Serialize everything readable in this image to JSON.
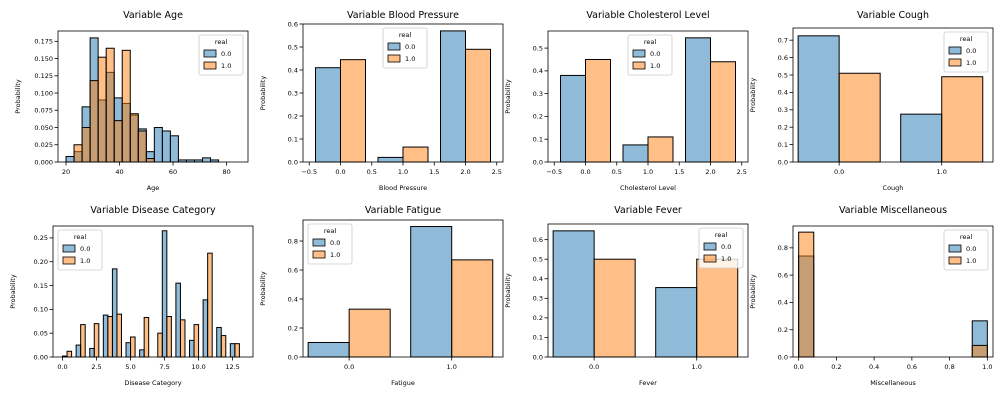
{
  "colors": {
    "series_0": "#1f77b4",
    "series_1": "#ff7f0e",
    "edge": "#000000"
  },
  "chart_data": [
    {
      "type": "histogram",
      "title": "Variable Age",
      "xlabel": "Age",
      "ylabel": "Probability",
      "xlim": [
        17,
        88
      ],
      "ylim": [
        0,
        0.19
      ],
      "xticks": [
        "20",
        "40",
        "60",
        "80"
      ],
      "xtick_values": [
        20,
        40,
        60,
        80
      ],
      "yticks": [
        "0.000",
        "0.025",
        "0.050",
        "0.075",
        "0.100",
        "0.125",
        "0.150",
        "0.175"
      ],
      "ytick_values": [
        0,
        0.025,
        0.05,
        0.075,
        0.1,
        0.125,
        0.15,
        0.175
      ],
      "legend": {
        "title": "real",
        "position": "upper-right",
        "entries": [
          "0.0",
          "1.0"
        ]
      },
      "series": [
        {
          "name": "0.0",
          "bins": [
            [
              20,
              23,
              0.008
            ],
            [
              23,
              26,
              0.015
            ],
            [
              26,
              29,
              0.08
            ],
            [
              29,
              32,
              0.18
            ],
            [
              32,
              35,
              0.09
            ],
            [
              35,
              38,
              0.13
            ],
            [
              38,
              41,
              0.093
            ],
            [
              41,
              44,
              0.085
            ],
            [
              44,
              47,
              0.068
            ],
            [
              47,
              50,
              0.048
            ],
            [
              50,
              53,
              0.015
            ],
            [
              53,
              56,
              0.05
            ],
            [
              56,
              59,
              0.045
            ],
            [
              59,
              62,
              0.038
            ],
            [
              62,
              65,
              0.003
            ],
            [
              65,
              68,
              0.003
            ],
            [
              68,
              71,
              0.003
            ],
            [
              71,
              74,
              0.006
            ],
            [
              74,
              77,
              0.003
            ]
          ]
        },
        {
          "name": "1.0",
          "bins": [
            [
              23,
              26,
              0.025
            ],
            [
              26,
              29,
              0.05
            ],
            [
              29,
              32,
              0.118
            ],
            [
              32,
              35,
              0.152
            ],
            [
              35,
              38,
              0.165
            ],
            [
              38,
              41,
              0.06
            ],
            [
              41,
              44,
              0.162
            ],
            [
              44,
              47,
              0.07
            ],
            [
              47,
              50,
              0.045
            ],
            [
              50,
              53,
              0.005
            ]
          ]
        }
      ]
    },
    {
      "type": "histogram",
      "title": "Variable Blood Pressure",
      "xlabel": "Blood Pressure",
      "ylabel": "Probability",
      "xlim": [
        -0.6,
        2.6
      ],
      "ylim": [
        0,
        0.6
      ],
      "xticks": [
        "−0.5",
        "0.0",
        "0.5",
        "1.0",
        "1.5",
        "2.0",
        "2.5"
      ],
      "xtick_values": [
        -0.5,
        0,
        0.5,
        1,
        1.5,
        2,
        2.5
      ],
      "yticks": [
        "0.0",
        "0.1",
        "0.2",
        "0.3",
        "0.4",
        "0.5",
        "0.6"
      ],
      "ytick_values": [
        0,
        0.1,
        0.2,
        0.3,
        0.4,
        0.5,
        0.6
      ],
      "legend": {
        "title": "real",
        "position": "upper-center",
        "entries": [
          "0.0",
          "1.0"
        ]
      },
      "series": [
        {
          "name": "0.0",
          "bins": [
            [
              -0.4,
              0.0,
              0.41
            ],
            [
              0.6,
              1.0,
              0.02
            ],
            [
              1.6,
              2.0,
              0.57
            ]
          ]
        },
        {
          "name": "1.0",
          "bins": [
            [
              0.0,
              0.4,
              0.445
            ],
            [
              1.0,
              1.4,
              0.065
            ],
            [
              2.0,
              2.4,
              0.49
            ]
          ]
        }
      ]
    },
    {
      "type": "histogram",
      "title": "Variable Cholesterol Level",
      "xlabel": "Cholesterol Level",
      "ylabel": "Probability",
      "xlim": [
        -0.6,
        2.6
      ],
      "ylim": [
        0,
        0.575
      ],
      "xticks": [
        "−0.5",
        "0.0",
        "0.5",
        "1.0",
        "1.5",
        "2.0",
        "2.5"
      ],
      "xtick_values": [
        -0.5,
        0,
        0.5,
        1,
        1.5,
        2,
        2.5
      ],
      "yticks": [
        "0.0",
        "0.1",
        "0.2",
        "0.3",
        "0.4",
        "0.5"
      ],
      "ytick_values": [
        0,
        0.1,
        0.2,
        0.3,
        0.4,
        0.5
      ],
      "legend": {
        "title": "real",
        "position": "upper-center",
        "entries": [
          "0.0",
          "1.0"
        ]
      },
      "series": [
        {
          "name": "0.0",
          "bins": [
            [
              -0.4,
              0.0,
              0.38
            ],
            [
              0.6,
              1.0,
              0.075
            ],
            [
              1.6,
              2.0,
              0.545
            ]
          ]
        },
        {
          "name": "1.0",
          "bins": [
            [
              0.0,
              0.4,
              0.45
            ],
            [
              1.0,
              1.4,
              0.11
            ],
            [
              2.0,
              2.4,
              0.44
            ]
          ]
        }
      ]
    },
    {
      "type": "histogram",
      "title": "Variable Cough",
      "xlabel": "Cough",
      "ylabel": "Probability",
      "xlim": [
        -0.45,
        1.5
      ],
      "ylim": [
        0,
        0.77
      ],
      "xticks": [
        "0.0",
        "1.0"
      ],
      "xtick_values": [
        0,
        1
      ],
      "yticks": [
        "0.0",
        "0.1",
        "0.2",
        "0.3",
        "0.4",
        "0.5",
        "0.6",
        "0.7"
      ],
      "ytick_values": [
        0,
        0.1,
        0.2,
        0.3,
        0.4,
        0.5,
        0.6,
        0.7
      ],
      "legend": {
        "title": "real",
        "position": "upper-right",
        "entries": [
          "0.0",
          "1.0"
        ]
      },
      "series": [
        {
          "name": "0.0",
          "bins": [
            [
              -0.4,
              0.0,
              0.725
            ],
            [
              0.6,
              1.0,
              0.275
            ]
          ]
        },
        {
          "name": "1.0",
          "bins": [
            [
              0.0,
              0.4,
              0.51
            ],
            [
              1.0,
              1.4,
              0.49
            ]
          ]
        }
      ]
    },
    {
      "type": "histogram",
      "title": "Variable Disease Category",
      "xlabel": "Disease Category",
      "ylabel": "Probability",
      "xlim": [
        -0.7,
        14.0
      ],
      "ylim": [
        0,
        0.275
      ],
      "xticks": [
        "0.0",
        "2.5",
        "5.0",
        "7.5",
        "10.0",
        "12.5"
      ],
      "xtick_values": [
        0,
        2.5,
        5,
        7.5,
        10,
        12.5
      ],
      "yticks": [
        "0.00",
        "0.05",
        "0.10",
        "0.15",
        "0.20",
        "0.25"
      ],
      "ytick_values": [
        0,
        0.05,
        0.1,
        0.15,
        0.2,
        0.25
      ],
      "legend": {
        "title": "real",
        "position": "upper-left",
        "entries": [
          "0.0",
          "1.0"
        ]
      },
      "series": [
        {
          "name": "0.0",
          "bins": [
            [
              0.0,
              0.333,
              0.002
            ],
            [
              1.0,
              1.333,
              0.025
            ],
            [
              2.0,
              2.333,
              0.018
            ],
            [
              3.0,
              3.333,
              0.088
            ],
            [
              3.667,
              4.0,
              0.185
            ],
            [
              4.667,
              5.0,
              0.03
            ],
            [
              5.667,
              6.0,
              0.015
            ],
            [
              7.333,
              7.667,
              0.265
            ],
            [
              8.333,
              8.667,
              0.155
            ],
            [
              9.333,
              9.667,
              0.035
            ],
            [
              10.333,
              10.667,
              0.12
            ],
            [
              11.333,
              11.667,
              0.062
            ],
            [
              12.333,
              12.667,
              0.028
            ]
          ]
        },
        {
          "name": "1.0",
          "bins": [
            [
              0.333,
              0.667,
              0.012
            ],
            [
              1.333,
              1.667,
              0.068
            ],
            [
              2.333,
              2.667,
              0.07
            ],
            [
              3.333,
              3.667,
              0.085
            ],
            [
              4.0,
              4.333,
              0.09
            ],
            [
              5.0,
              5.333,
              0.042
            ],
            [
              6.0,
              6.333,
              0.083
            ],
            [
              7.0,
              7.333,
              0.05
            ],
            [
              7.667,
              8.0,
              0.085
            ],
            [
              8.667,
              9.0,
              0.078
            ],
            [
              9.667,
              10.0,
              0.068
            ],
            [
              10.667,
              11.0,
              0.218
            ],
            [
              11.667,
              12.0,
              0.045
            ],
            [
              12.667,
              13.0,
              0.028
            ]
          ]
        }
      ]
    },
    {
      "type": "histogram",
      "title": "Variable Fatigue",
      "xlabel": "Fatigue",
      "ylabel": "Probability",
      "xlim": [
        -0.45,
        1.5
      ],
      "ylim": [
        0,
        0.945
      ],
      "xticks": [
        "0.0",
        "1.0"
      ],
      "xtick_values": [
        0,
        1
      ],
      "yticks": [
        "0.0",
        "0.2",
        "0.4",
        "0.6",
        "0.8"
      ],
      "ytick_values": [
        0,
        0.2,
        0.4,
        0.6,
        0.8
      ],
      "legend": {
        "title": "real",
        "position": "upper-left",
        "entries": [
          "0.0",
          "1.0"
        ]
      },
      "series": [
        {
          "name": "0.0",
          "bins": [
            [
              -0.4,
              0.0,
              0.1
            ],
            [
              0.6,
              1.0,
              0.9
            ]
          ]
        },
        {
          "name": "1.0",
          "bins": [
            [
              0.0,
              0.4,
              0.33
            ],
            [
              1.0,
              1.4,
              0.67
            ]
          ]
        }
      ]
    },
    {
      "type": "histogram",
      "title": "Variable Fever",
      "xlabel": "Fever",
      "ylabel": "Probability",
      "xlim": [
        -0.45,
        1.5
      ],
      "ylim": [
        0,
        0.68
      ],
      "xticks": [
        "0.0",
        "1.0"
      ],
      "xtick_values": [
        0,
        1
      ],
      "yticks": [
        "0.0",
        "0.1",
        "0.2",
        "0.3",
        "0.4",
        "0.5",
        "0.6"
      ],
      "ytick_values": [
        0,
        0.1,
        0.2,
        0.3,
        0.4,
        0.5,
        0.6
      ],
      "legend": {
        "title": "real",
        "position": "upper-right",
        "entries": [
          "0.0",
          "1.0"
        ]
      },
      "series": [
        {
          "name": "0.0",
          "bins": [
            [
              -0.4,
              0.0,
              0.645
            ],
            [
              0.6,
              1.0,
              0.355
            ]
          ]
        },
        {
          "name": "1.0",
          "bins": [
            [
              0.0,
              0.4,
              0.5
            ],
            [
              1.0,
              1.4,
              0.5
            ]
          ]
        }
      ]
    },
    {
      "type": "histogram",
      "title": "Variable Miscellaneous",
      "xlabel": "Miscellaneous",
      "ylabel": "Probability",
      "xlim": [
        -0.03,
        1.03
      ],
      "ylim": [
        0,
        0.96
      ],
      "xticks": [
        "0.0",
        "0.2",
        "0.4",
        "0.6",
        "0.8",
        "1.0"
      ],
      "xtick_values": [
        0,
        0.2,
        0.4,
        0.6,
        0.8,
        1.0
      ],
      "yticks": [
        "0.0",
        "0.2",
        "0.4",
        "0.6",
        "0.8"
      ],
      "ytick_values": [
        0,
        0.2,
        0.4,
        0.6,
        0.8
      ],
      "legend": {
        "title": "real",
        "position": "upper-right",
        "entries": [
          "0.0",
          "1.0"
        ]
      },
      "series": [
        {
          "name": "0.0",
          "bins": [
            [
              0.0,
              0.08,
              0.74
            ],
            [
              0.92,
              1.0,
              0.265
            ]
          ]
        },
        {
          "name": "1.0",
          "bins": [
            [
              0.0,
              0.08,
              0.915
            ],
            [
              0.92,
              1.0,
              0.085
            ]
          ]
        }
      ]
    }
  ]
}
